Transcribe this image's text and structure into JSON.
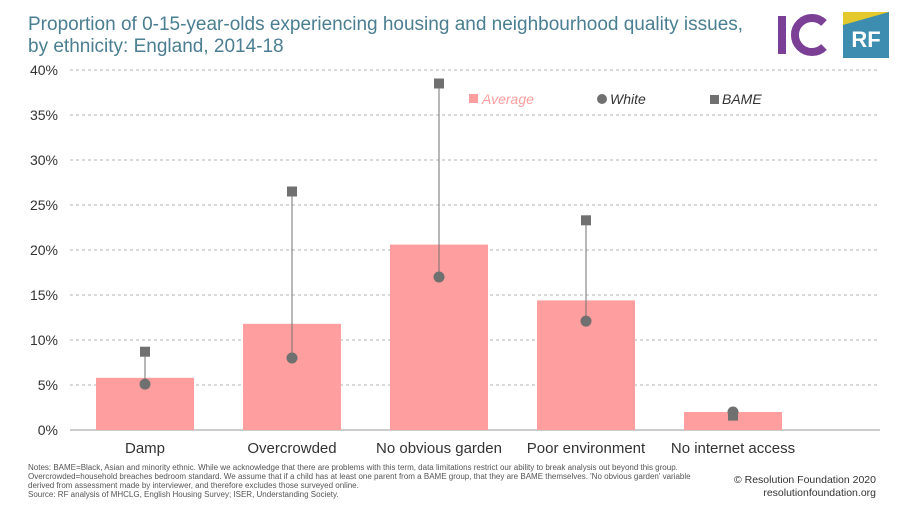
{
  "title": "Proportion of 0-15-year-olds experiencing housing and neighbourhood quality issues, by ethnicity: England, 2014-18",
  "logos": {
    "left": "IC",
    "right": "RF"
  },
  "colors": {
    "average": "#ff9e9e",
    "marker": "#707070",
    "title": "#4a7e91",
    "accent": "#3c8daf"
  },
  "chart_data": {
    "type": "bar",
    "categories": [
      "Damp",
      "Overcrowded",
      "No obvious garden",
      "Poor environment",
      "No internet access"
    ],
    "series": [
      {
        "name": "Average",
        "kind": "bar",
        "values": [
          5.8,
          11.8,
          20.6,
          14.4,
          2.0
        ]
      },
      {
        "name": "White",
        "kind": "circle",
        "values": [
          5.1,
          8.0,
          17.0,
          12.1,
          2.0
        ]
      },
      {
        "name": "BAME",
        "kind": "square",
        "values": [
          8.7,
          26.5,
          38.5,
          23.3,
          1.6
        ]
      }
    ],
    "ylim": [
      0,
      40
    ],
    "yticks": [
      0,
      5,
      10,
      15,
      20,
      25,
      30,
      35,
      40
    ],
    "ytick_labels": [
      "0%",
      "5%",
      "10%",
      "15%",
      "20%",
      "25%",
      "30%",
      "35%",
      "40%"
    ],
    "grid": true,
    "legend": [
      "Average",
      "White",
      "BAME"
    ],
    "legend_position": "top-right"
  },
  "notes": [
    "Notes: BAME=Black, Asian and minority ethnic. While we acknowledge that there are problems with this term, data limitations restrict our ability to break analysis out beyond this group.",
    "Overcrowded=household breaches bedroom standard. We assume that if a child has at least one parent from a BAME group, that they are BAME themselves. 'No obvious garden' variable",
    "derived from assessment made by interviewer, and therefore excludes those surveyed online.",
    "Source: RF analysis of MHCLG, English Housing Survey; ISER, Understanding Society."
  ],
  "credit": [
    "© Resolution Foundation 2020",
    "resolutionfoundation.org"
  ]
}
